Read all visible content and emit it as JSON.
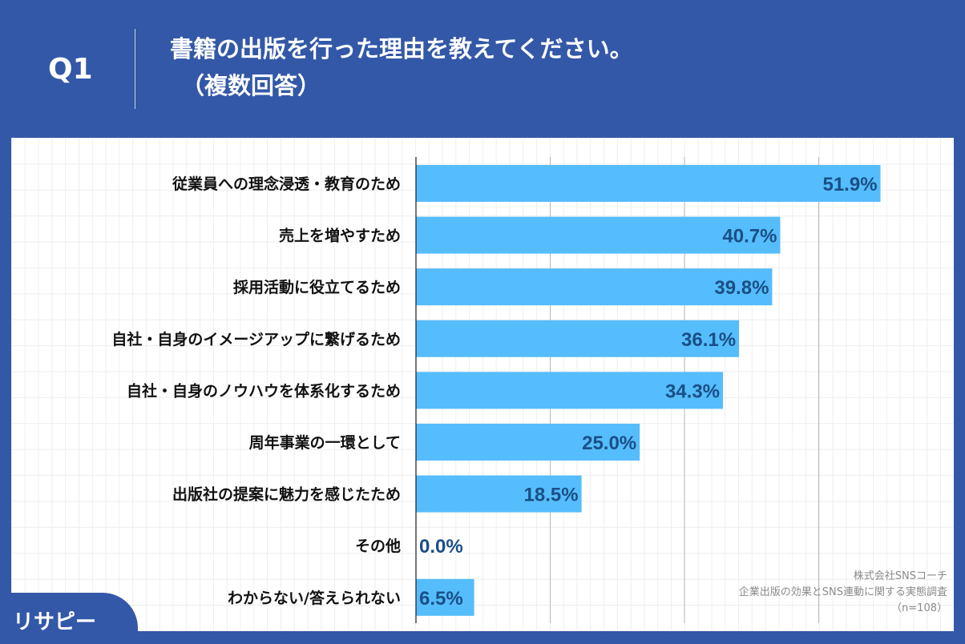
{
  "header": {
    "question_no": "Q1",
    "title": "書籍の出版を行った理由を教えてください。",
    "subtitle": "（複数回答）"
  },
  "source": {
    "company": "株式会社SNSコーチ",
    "survey": "企業出版の効果とSNS連動に関する実態調査",
    "n": "（n=108）"
  },
  "logo": {
    "text": "リサピー"
  },
  "colors": {
    "background": "#3358a7",
    "bar": "#55bdfc",
    "value_text": "#1a4f86"
  },
  "chart_data": {
    "type": "bar",
    "orientation": "horizontal",
    "categories": [
      "従業員への理念浸透・教育のため",
      "売上を増やすため",
      "採用活動に役立てるため",
      "自社・自身のイメージアップに繋げるため",
      "自社・自身のノウハウを体系化するため",
      "周年事業の一環として",
      "出版社の提案に魅力を感じたため",
      "その他",
      "わからない/答えられない"
    ],
    "values": [
      51.9,
      40.7,
      39.8,
      36.1,
      34.3,
      25.0,
      18.5,
      0.0,
      6.5
    ],
    "labels": [
      "51.9%",
      "40.7%",
      "39.8%",
      "36.1%",
      "34.3%",
      "25.0%",
      "18.5%",
      "0.0%",
      "6.5%"
    ],
    "xlim": [
      0,
      60
    ],
    "gridlines": [
      15,
      30,
      45
    ],
    "grid": true,
    "unit": "%"
  }
}
